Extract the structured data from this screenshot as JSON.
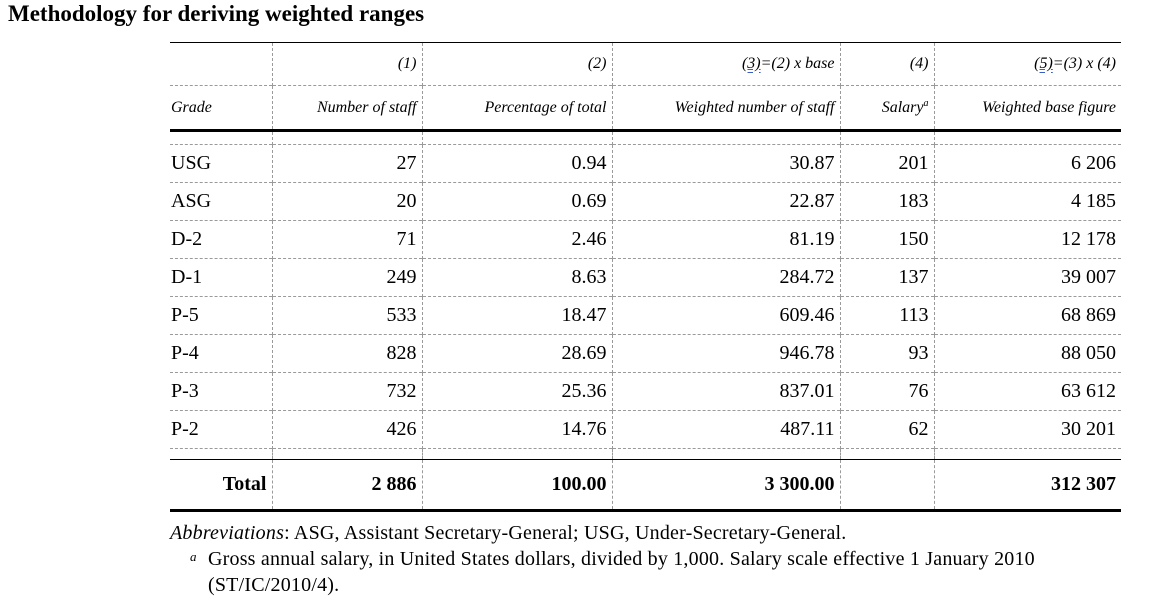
{
  "title": "Methodology for deriving weighted ranges",
  "column_numbers": [
    "(1)",
    "(2)",
    "(3)",
    "=(2) x base",
    "(4)",
    "(5)",
    "=(3) x (4)"
  ],
  "headers": {
    "grade": "Grade",
    "staff": "Number of staff",
    "pct": "Percentage of total",
    "weighted": "Weighted number of staff",
    "salary": "Salary",
    "salary_note": "a",
    "base": "Weighted base figure"
  },
  "rows": [
    {
      "grade": "USG",
      "staff": "27",
      "pct": "0.94",
      "weighted": "30.87",
      "salary": "201",
      "base": "6 206"
    },
    {
      "grade": "ASG",
      "staff": "20",
      "pct": "0.69",
      "weighted": "22.87",
      "salary": "183",
      "base": "4 185"
    },
    {
      "grade": "D-2",
      "staff": "71",
      "pct": "2.46",
      "weighted": "81.19",
      "salary": "150",
      "base": "12 178"
    },
    {
      "grade": "D-1",
      "staff": "249",
      "pct": "8.63",
      "weighted": "284.72",
      "salary": "137",
      "base": "39 007"
    },
    {
      "grade": "P-5",
      "staff": "533",
      "pct": "18.47",
      "weighted": "609.46",
      "salary": "113",
      "base": "68 869"
    },
    {
      "grade": "P-4",
      "staff": "828",
      "pct": "28.69",
      "weighted": "946.78",
      "salary": "93",
      "base": "88 050"
    },
    {
      "grade": "P-3",
      "staff": "732",
      "pct": "25.36",
      "weighted": "837.01",
      "salary": "76",
      "base": "63 612"
    },
    {
      "grade": "P-2",
      "staff": "426",
      "pct": "14.76",
      "weighted": "487.11",
      "salary": "62",
      "base": "30 201"
    }
  ],
  "total": {
    "label": "Total",
    "staff": "2 886",
    "pct": "100.00",
    "weighted": "3 300.00",
    "salary": "",
    "base": "312 307"
  },
  "abbreviations": {
    "lead": "Abbreviations",
    "text": ": ASG, Assistant Secretary-General; USG, Under-Secretary-General."
  },
  "footnote": {
    "mark": "a",
    "text": "Gross annual salary, in United States dollars, divided by 1,000. Salary scale effective 1 January 2010 (ST/IC/2010/4)."
  }
}
